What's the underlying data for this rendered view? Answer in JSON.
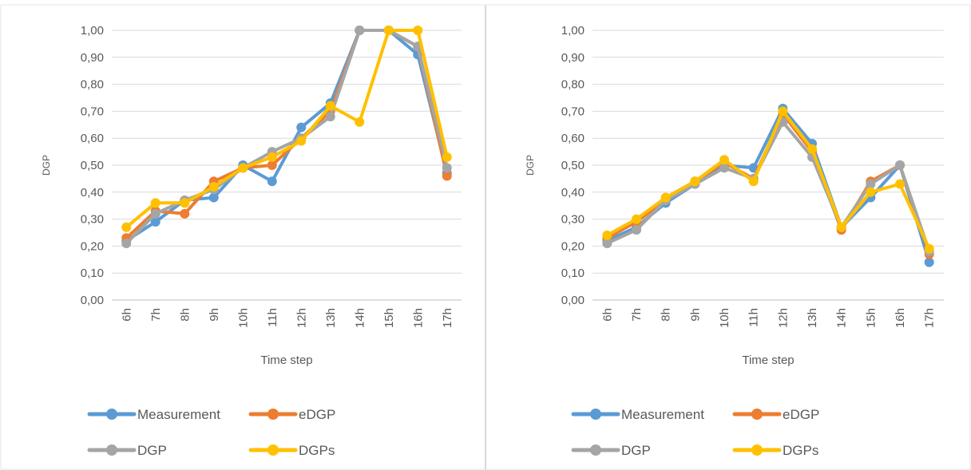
{
  "chart_data": [
    {
      "type": "line",
      "categories": [
        "6h",
        "7h",
        "8h",
        "9h",
        "10h",
        "11h",
        "12h",
        "13h",
        "14h",
        "15h",
        "16h",
        "17h"
      ],
      "ylabel": "DGP",
      "xlabel": "Time step",
      "ylim": [
        0,
        1
      ],
      "yticks": [
        "0,00",
        "0,10",
        "0,20",
        "0,30",
        "0,40",
        "0,50",
        "0,60",
        "0,70",
        "0,80",
        "0,90",
        "1,00"
      ],
      "grid": true,
      "legend_position": "bottom",
      "series": [
        {
          "name": "Measurement",
          "color": "#5b9bd5",
          "values": [
            0.22,
            0.29,
            0.37,
            0.38,
            0.5,
            0.44,
            0.64,
            0.73,
            1.0,
            1.0,
            0.91,
            0.47
          ]
        },
        {
          "name": "eDGP",
          "color": "#ed7d31",
          "values": [
            0.23,
            0.33,
            0.32,
            0.44,
            0.49,
            0.5,
            0.6,
            0.7,
            1.0,
            1.0,
            0.94,
            0.46
          ]
        },
        {
          "name": "DGP",
          "color": "#a5a5a5",
          "values": [
            0.21,
            0.32,
            0.37,
            0.41,
            0.49,
            0.55,
            0.6,
            0.68,
            1.0,
            1.0,
            0.94,
            0.49
          ]
        },
        {
          "name": "DGPs",
          "color": "#ffc000",
          "values": [
            0.27,
            0.36,
            0.36,
            0.42,
            0.49,
            0.53,
            0.59,
            0.72,
            0.66,
            1.0,
            1.0,
            0.53
          ]
        }
      ]
    },
    {
      "type": "line",
      "categories": [
        "6h",
        "7h",
        "8h",
        "9h",
        "10h",
        "11h",
        "12h",
        "13h",
        "14h",
        "15h",
        "16h",
        "17h"
      ],
      "ylabel": "DGP",
      "xlabel": "Time step",
      "ylim": [
        0,
        1
      ],
      "yticks": [
        "0,00",
        "0,10",
        "0,20",
        "0,30",
        "0,40",
        "0,50",
        "0,60",
        "0,70",
        "0,80",
        "0,90",
        "1,00"
      ],
      "grid": true,
      "legend_position": "bottom",
      "series": [
        {
          "name": "Measurement",
          "color": "#5b9bd5",
          "values": [
            0.22,
            0.27,
            0.36,
            0.43,
            0.5,
            0.49,
            0.71,
            0.58,
            0.27,
            0.38,
            0.5,
            0.14
          ]
        },
        {
          "name": "eDGP",
          "color": "#ed7d31",
          "values": [
            0.23,
            0.29,
            0.37,
            0.44,
            0.51,
            0.45,
            0.69,
            0.55,
            0.26,
            0.44,
            0.5,
            0.17
          ]
        },
        {
          "name": "DGP",
          "color": "#a5a5a5",
          "values": [
            0.21,
            0.26,
            0.37,
            0.43,
            0.49,
            0.45,
            0.66,
            0.53,
            0.27,
            0.43,
            0.5,
            0.18
          ]
        },
        {
          "name": "DGPs",
          "color": "#ffc000",
          "values": [
            0.24,
            0.3,
            0.38,
            0.44,
            0.52,
            0.44,
            0.7,
            0.56,
            0.27,
            0.4,
            0.43,
            0.19
          ]
        }
      ]
    }
  ]
}
